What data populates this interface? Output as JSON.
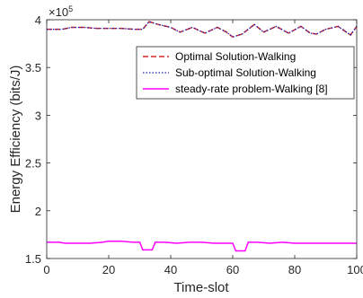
{
  "chart_data": {
    "type": "line",
    "xlabel": "Time-slot",
    "ylabel": "Energy Efficiency (bits/J)",
    "exponent_label": "×10",
    "exponent_power": "5",
    "xlim": [
      0,
      100
    ],
    "ylim": [
      1.5,
      4
    ],
    "xticks": [
      0,
      20,
      40,
      60,
      80,
      100
    ],
    "xtick_labels": [
      "0",
      "20",
      "40",
      "60",
      "80",
      "100"
    ],
    "yticks": [
      1.5,
      2,
      2.5,
      3,
      3.5,
      4
    ],
    "ytick_labels": [
      "1.5",
      "2",
      "2.5",
      "3",
      "3.5",
      "4"
    ],
    "grid": false,
    "legend_position": "top-right",
    "series": [
      {
        "name": "Optimal Solution-Walking",
        "color": "#d62728",
        "style": "dashed",
        "x": [
          0,
          5,
          8,
          12,
          16,
          20,
          24,
          28,
          31,
          33,
          36,
          40,
          43,
          47,
          51,
          55,
          58,
          60,
          63,
          67,
          70,
          74,
          78,
          82,
          85,
          87,
          90,
          94,
          98,
          100
        ],
        "y": [
          3.9,
          3.9,
          3.92,
          3.92,
          3.91,
          3.91,
          3.91,
          3.9,
          3.9,
          3.98,
          3.95,
          3.92,
          3.87,
          3.92,
          3.86,
          3.92,
          3.87,
          3.82,
          3.85,
          3.95,
          3.87,
          3.93,
          3.86,
          3.93,
          3.86,
          3.85,
          3.9,
          3.93,
          3.84,
          3.93
        ]
      },
      {
        "name": "Sub-optimal Solution-Walking",
        "color": "#1f1fb4",
        "style": "dotted",
        "x": [
          0,
          5,
          8,
          12,
          16,
          20,
          24,
          28,
          31,
          33,
          36,
          40,
          43,
          47,
          51,
          55,
          58,
          60,
          63,
          67,
          70,
          74,
          78,
          82,
          85,
          87,
          90,
          94,
          98,
          100
        ],
        "y": [
          3.9,
          3.9,
          3.92,
          3.92,
          3.91,
          3.91,
          3.91,
          3.9,
          3.9,
          3.98,
          3.95,
          3.92,
          3.87,
          3.92,
          3.86,
          3.92,
          3.87,
          3.82,
          3.85,
          3.95,
          3.87,
          3.93,
          3.86,
          3.93,
          3.86,
          3.85,
          3.9,
          3.93,
          3.84,
          3.93
        ]
      },
      {
        "name": "steady-rate problem-Walking [8]",
        "color": "#ff00ff",
        "style": "solid",
        "x": [
          0,
          4,
          6,
          10,
          14,
          18,
          20,
          24,
          28,
          30,
          31,
          34,
          35,
          38,
          42,
          46,
          50,
          54,
          58,
          60,
          61,
          64,
          65,
          68,
          72,
          76,
          80,
          84,
          88,
          92,
          96,
          100
        ],
        "y": [
          1.67,
          1.67,
          1.66,
          1.66,
          1.66,
          1.67,
          1.68,
          1.68,
          1.67,
          1.67,
          1.59,
          1.59,
          1.67,
          1.67,
          1.66,
          1.67,
          1.67,
          1.66,
          1.66,
          1.66,
          1.58,
          1.58,
          1.67,
          1.67,
          1.66,
          1.67,
          1.66,
          1.66,
          1.66,
          1.66,
          1.66,
          1.66
        ]
      }
    ]
  }
}
